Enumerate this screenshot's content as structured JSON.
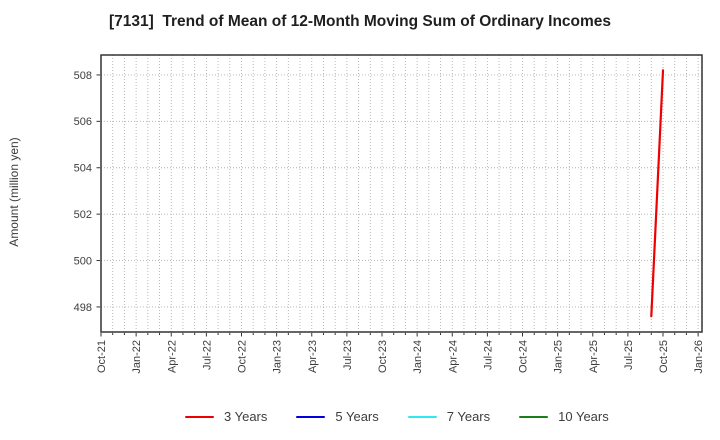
{
  "title": "[7131]  Trend of Mean of 12-Month Moving Sum of Ordinary Incomes",
  "chart_data": {
    "type": "line",
    "title": "[7131]  Trend of Mean of 12-Month Moving Sum of Ordinary Incomes",
    "xlabel": "",
    "ylabel": "Amount (million yen)",
    "x_tick_labels": [
      "Oct-21",
      "Jan-22",
      "Apr-22",
      "Jul-22",
      "Oct-22",
      "Jan-23",
      "Apr-23",
      "Jul-23",
      "Oct-23",
      "Jan-24",
      "Apr-24",
      "Jul-24",
      "Oct-24",
      "Jan-25",
      "Apr-25",
      "Jul-25",
      "Oct-25",
      "Jan-26"
    ],
    "x_tick_months": [
      0,
      3,
      6,
      9,
      12,
      15,
      18,
      21,
      24,
      27,
      30,
      33,
      36,
      39,
      42,
      45,
      48,
      51
    ],
    "xlim_months": [
      0,
      51.33
    ],
    "y_ticks": [
      498,
      500,
      502,
      504,
      506,
      508
    ],
    "ylim": [
      496.92,
      508.86
    ],
    "grid": {
      "style": "dotted",
      "color": "#b0b0b0",
      "x_minor_every_months": 1,
      "horizontal_at_y_ticks": true
    },
    "legend_position": "bottom",
    "frame_color": "#333333",
    "series": [
      {
        "name": "3 Years",
        "color": "#ee0000",
        "points": [
          {
            "x_label": "Sep-25",
            "month": 47,
            "value": 497.6
          },
          {
            "x_label": "Oct-25",
            "month": 48,
            "value": 508.2
          }
        ]
      },
      {
        "name": "5 Years",
        "color": "#0000dd",
        "points": []
      },
      {
        "name": "7 Years",
        "color": "#2fe8f0",
        "points": []
      },
      {
        "name": "10 Years",
        "color": "#1b7e1b",
        "points": []
      }
    ]
  }
}
